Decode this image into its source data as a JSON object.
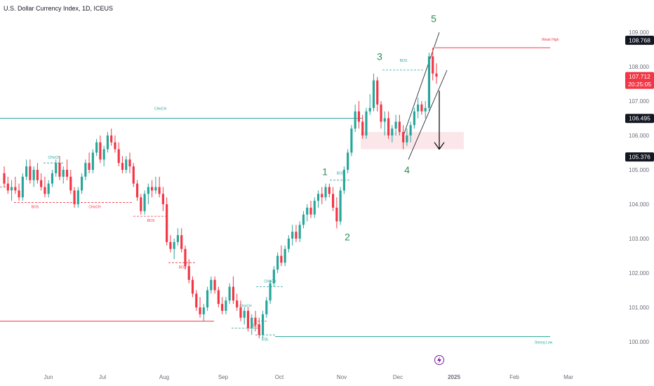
{
  "chart_data": {
    "type": "candlestick",
    "title": "U.S. Dollar Currency Index, 1D, ICEUS",
    "ylim": [
      99.6,
      109.25
    ],
    "y_ticks": [
      "109.000",
      "108.000",
      "107.000",
      "106.000",
      "105.000",
      "104.000",
      "103.000",
      "102.000",
      "101.000",
      "100.000"
    ],
    "x_ticks": [
      "Jun",
      "Jul",
      "Aug",
      "Sep",
      "Oct",
      "Nov",
      "Dec",
      "2025",
      "Feb",
      "Mar"
    ],
    "price_badges": [
      {
        "value": "108.768",
        "color": "#131722"
      },
      {
        "value": "107.712",
        "color": "#f23645",
        "sub": "20:25:05"
      },
      {
        "value": "106.495",
        "color": "#131722"
      },
      {
        "value": "105.376",
        "color": "#131722"
      }
    ],
    "levels": [
      {
        "label": "CHoCH",
        "y": 106.5,
        "color": "#26a69a"
      },
      {
        "label": "Weak High",
        "y": 108.55,
        "color": "#f23645"
      },
      {
        "label": "Strong Low",
        "y": 100.15,
        "color": "#26a69a"
      },
      {
        "label": "",
        "y": 100.6,
        "color": "#f23645"
      }
    ],
    "structure_labels": [
      "CHoCH",
      "BOS",
      "CHoCH",
      "BOS",
      "BOS",
      "CHoCH",
      "BOS",
      "EQL",
      "BOS",
      "BOS",
      "CHoCH"
    ],
    "wave_labels": [
      "1",
      "2",
      "3",
      "4",
      "5"
    ],
    "demand_zone": [
      105.6,
      106.1
    ],
    "colors": {
      "up": "#26a69a",
      "down": "#f23645"
    },
    "candles": [
      [
        104.9,
        105.1,
        104.5,
        104.6
      ],
      [
        104.6,
        104.8,
        104.3,
        104.4
      ],
      [
        104.4,
        104.7,
        104.1,
        104.5
      ],
      [
        104.5,
        104.8,
        104.3,
        104.4
      ],
      [
        104.4,
        104.6,
        104.1,
        104.2
      ],
      [
        104.2,
        104.9,
        104.1,
        104.8
      ],
      [
        104.8,
        105.3,
        104.7,
        105.1
      ],
      [
        105.1,
        105.3,
        104.6,
        104.7
      ],
      [
        104.7,
        105.1,
        104.5,
        105.0
      ],
      [
        105.0,
        105.2,
        104.6,
        104.7
      ],
      [
        104.7,
        104.9,
        104.4,
        104.5
      ],
      [
        104.5,
        104.8,
        104.2,
        104.3
      ],
      [
        104.3,
        104.7,
        104.2,
        104.6
      ],
      [
        104.6,
        105.0,
        104.5,
        104.9
      ],
      [
        104.9,
        105.3,
        104.8,
        105.2
      ],
      [
        105.2,
        105.4,
        104.7,
        104.8
      ],
      [
        104.8,
        105.1,
        104.6,
        105.0
      ],
      [
        105.0,
        105.3,
        104.7,
        104.8
      ],
      [
        104.8,
        105.0,
        104.3,
        104.4
      ],
      [
        104.4,
        104.5,
        103.9,
        104.0
      ],
      [
        104.0,
        104.5,
        103.9,
        104.4
      ],
      [
        104.4,
        104.9,
        104.3,
        104.8
      ],
      [
        104.8,
        105.3,
        104.7,
        105.2
      ],
      [
        105.2,
        105.5,
        104.9,
        105.0
      ],
      [
        105.0,
        105.6,
        104.9,
        105.5
      ],
      [
        105.5,
        105.9,
        105.4,
        105.8
      ],
      [
        105.8,
        106.0,
        105.2,
        105.3
      ],
      [
        105.3,
        105.7,
        105.1,
        105.6
      ],
      [
        105.6,
        106.1,
        105.5,
        106.0
      ],
      [
        106.0,
        106.2,
        105.7,
        105.8
      ],
      [
        105.8,
        106.0,
        105.5,
        105.6
      ],
      [
        105.6,
        105.8,
        105.1,
        105.2
      ],
      [
        105.2,
        105.4,
        104.9,
        105.0
      ],
      [
        105.0,
        105.4,
        104.9,
        105.3
      ],
      [
        105.3,
        105.5,
        104.9,
        105.1
      ],
      [
        105.1,
        105.2,
        104.5,
        104.6
      ],
      [
        104.6,
        104.7,
        104.1,
        104.2
      ],
      [
        104.2,
        104.3,
        103.7,
        103.8
      ],
      [
        103.8,
        104.4,
        103.7,
        104.3
      ],
      [
        104.3,
        104.6,
        104.0,
        104.5
      ],
      [
        104.5,
        104.7,
        104.2,
        104.4
      ],
      [
        104.4,
        104.8,
        104.3,
        104.5
      ],
      [
        104.5,
        104.8,
        104.2,
        104.3
      ],
      [
        104.3,
        104.5,
        103.8,
        104.0
      ],
      [
        104.0,
        104.2,
        102.8,
        102.9
      ],
      [
        102.9,
        103.1,
        102.6,
        102.7
      ],
      [
        102.7,
        103.0,
        102.4,
        102.9
      ],
      [
        102.9,
        103.3,
        102.8,
        103.1
      ],
      [
        103.1,
        103.3,
        102.6,
        102.7
      ],
      [
        102.7,
        102.8,
        102.1,
        102.2
      ],
      [
        102.2,
        102.4,
        101.7,
        101.8
      ],
      [
        101.8,
        101.9,
        101.3,
        101.4
      ],
      [
        101.4,
        101.5,
        100.9,
        101.0
      ],
      [
        101.0,
        101.3,
        100.7,
        100.8
      ],
      [
        100.8,
        101.1,
        100.6,
        101.0
      ],
      [
        101.0,
        101.6,
        100.9,
        101.5
      ],
      [
        101.5,
        101.9,
        101.4,
        101.8
      ],
      [
        101.8,
        101.9,
        101.4,
        101.5
      ],
      [
        101.5,
        101.6,
        101.0,
        101.1
      ],
      [
        101.1,
        101.3,
        100.8,
        100.9
      ],
      [
        100.9,
        101.3,
        100.8,
        101.2
      ],
      [
        101.2,
        101.7,
        101.1,
        101.6
      ],
      [
        101.6,
        101.9,
        101.1,
        101.2
      ],
      [
        101.2,
        101.4,
        100.9,
        101.0
      ],
      [
        101.0,
        101.2,
        100.6,
        100.7
      ],
      [
        100.7,
        101.0,
        100.5,
        100.9
      ],
      [
        100.9,
        101.0,
        100.3,
        100.4
      ],
      [
        100.4,
        100.8,
        100.2,
        100.7
      ],
      [
        100.7,
        100.9,
        100.3,
        100.5
      ],
      [
        100.5,
        100.7,
        100.1,
        100.2
      ],
      [
        100.2,
        100.9,
        100.1,
        100.8
      ],
      [
        100.8,
        101.3,
        100.7,
        101.2
      ],
      [
        101.2,
        101.8,
        101.1,
        101.7
      ],
      [
        101.7,
        102.2,
        101.6,
        102.1
      ],
      [
        102.1,
        102.6,
        102.0,
        102.5
      ],
      [
        102.5,
        102.8,
        102.2,
        102.3
      ],
      [
        102.3,
        102.8,
        102.2,
        102.7
      ],
      [
        102.7,
        103.1,
        102.6,
        103.0
      ],
      [
        103.0,
        103.4,
        102.8,
        103.2
      ],
      [
        103.2,
        103.4,
        102.9,
        103.0
      ],
      [
        103.0,
        103.5,
        102.9,
        103.4
      ],
      [
        103.4,
        103.8,
        103.3,
        103.7
      ],
      [
        103.7,
        104.0,
        103.5,
        103.9
      ],
      [
        103.9,
        104.1,
        103.6,
        103.7
      ],
      [
        103.7,
        104.2,
        103.6,
        104.1
      ],
      [
        104.1,
        104.4,
        103.9,
        104.3
      ],
      [
        104.3,
        104.5,
        104.0,
        104.2
      ],
      [
        104.2,
        104.6,
        104.1,
        104.5
      ],
      [
        104.5,
        104.6,
        104.2,
        104.3
      ],
      [
        104.3,
        104.5,
        103.8,
        103.9
      ],
      [
        103.9,
        104.2,
        103.3,
        103.5
      ],
      [
        103.5,
        104.5,
        103.4,
        104.4
      ],
      [
        104.4,
        105.1,
        104.3,
        105.0
      ],
      [
        105.0,
        105.6,
        104.9,
        105.5
      ],
      [
        105.5,
        106.3,
        105.4,
        106.2
      ],
      [
        106.2,
        106.9,
        106.1,
        106.7
      ],
      [
        106.7,
        107.0,
        106.2,
        106.4
      ],
      [
        106.4,
        106.6,
        105.9,
        106.0
      ],
      [
        106.0,
        106.8,
        105.9,
        106.7
      ],
      [
        106.7,
        107.2,
        106.6,
        106.8
      ],
      [
        106.8,
        107.8,
        106.7,
        107.6
      ],
      [
        107.6,
        107.7,
        106.7,
        106.9
      ],
      [
        106.9,
        107.0,
        106.2,
        106.4
      ],
      [
        106.4,
        106.7,
        106.0,
        106.5
      ],
      [
        106.5,
        106.7,
        105.9,
        106.0
      ],
      [
        106.0,
        106.3,
        105.8,
        106.2
      ],
      [
        106.2,
        106.6,
        106.0,
        106.4
      ],
      [
        106.4,
        106.6,
        106.0,
        106.1
      ],
      [
        106.1,
        106.3,
        105.6,
        105.8
      ],
      [
        105.8,
        106.2,
        105.7,
        106.0
      ],
      [
        106.0,
        106.4,
        105.8,
        106.3
      ],
      [
        106.3,
        106.8,
        106.2,
        106.7
      ],
      [
        106.7,
        107.1,
        106.5,
        106.9
      ],
      [
        106.9,
        107.0,
        106.6,
        106.7
      ],
      [
        106.7,
        107.0,
        106.5,
        106.8
      ],
      [
        106.8,
        108.4,
        106.7,
        108.3
      ],
      [
        108.3,
        108.55,
        107.6,
        107.8
      ],
      [
        107.8,
        108.1,
        107.5,
        107.712
      ]
    ]
  }
}
